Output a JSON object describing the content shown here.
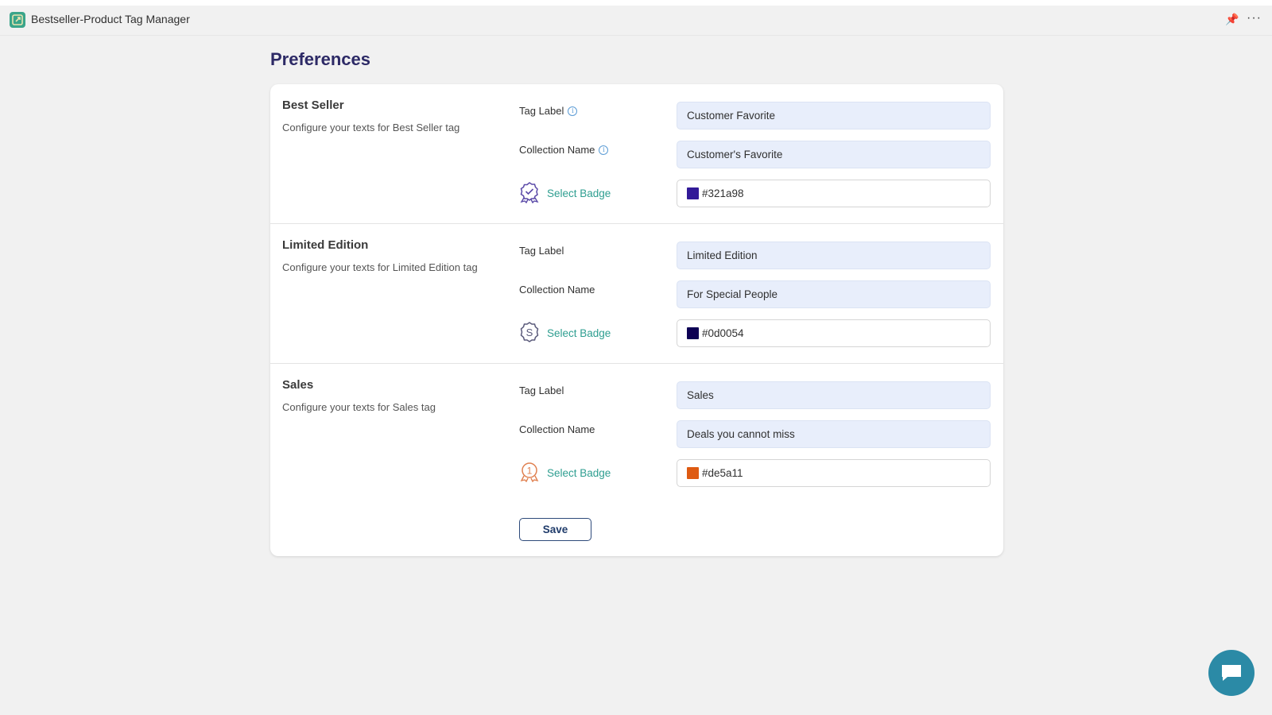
{
  "app": {
    "title": "Bestseller-Product Tag Manager",
    "logo_color": "#3aa58a"
  },
  "page": {
    "title": "Preferences"
  },
  "sections": [
    {
      "title": "Best Seller",
      "description": "Configure your texts for Best Seller tag",
      "tag_label": "Tag Label",
      "collection_label": "Collection Name",
      "tag_value": "Customer Favorite",
      "collection_value": "Customer's Favorite",
      "badge_label": "Select Badge",
      "badge_icon": "award-check-icon",
      "color": "#321a98",
      "has_info": true
    },
    {
      "title": "Limited Edition",
      "description": "Configure your texts for Limited Edition tag",
      "tag_label": "Tag Label",
      "collection_label": "Collection Name",
      "tag_value": "Limited Edition",
      "collection_value": "For Special People",
      "badge_label": "Select Badge",
      "badge_icon": "dollar-seal-icon",
      "color": "#0d0054",
      "has_info": false
    },
    {
      "title": "Sales",
      "description": "Configure your texts for Sales tag",
      "tag_label": "Tag Label",
      "collection_label": "Collection Name",
      "tag_value": "Sales",
      "collection_value": "Deals you cannot miss",
      "badge_label": "Select Badge",
      "badge_icon": "award-number-one-icon",
      "color": "#de5a11",
      "has_info": false
    }
  ],
  "actions": {
    "save_label": "Save"
  }
}
